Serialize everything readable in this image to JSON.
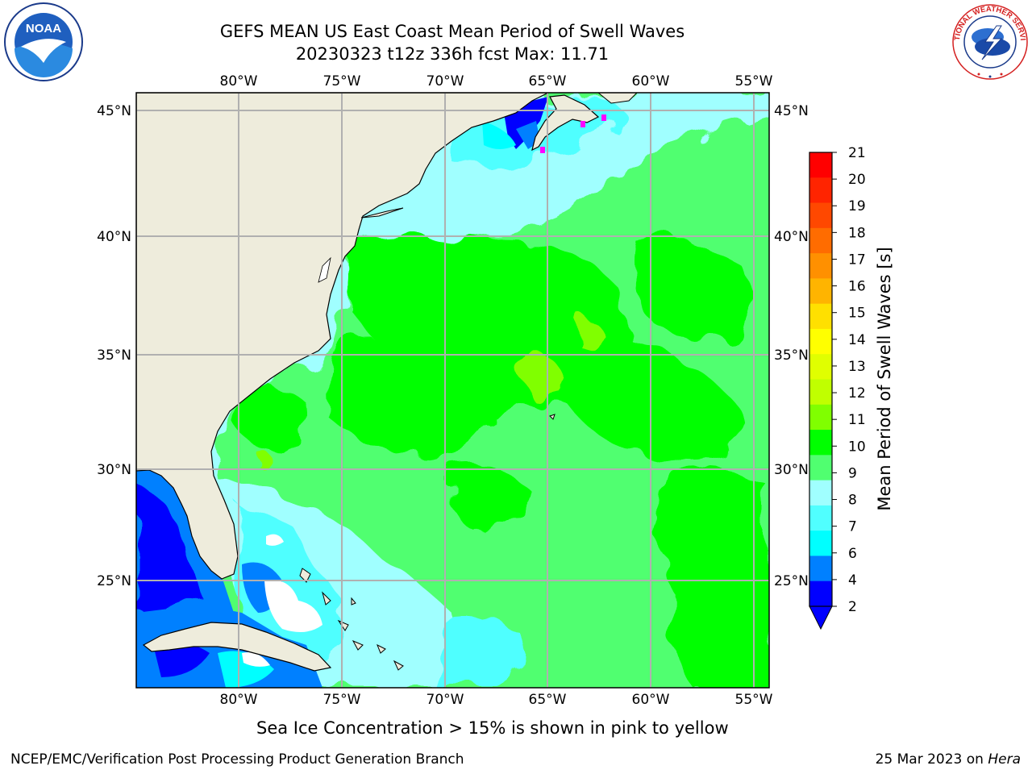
{
  "title": {
    "line1": "GEFS MEAN US East Coast Mean Period of Swell Waves",
    "line2": "20230323 t12z 336h fcst   Max: 11.71"
  },
  "map": {
    "lon_labels": [
      "80°W",
      "75°W",
      "70°W",
      "65°W",
      "60°W",
      "55°W"
    ],
    "lat_labels": [
      "45°N",
      "40°N",
      "35°N",
      "30°N",
      "25°N"
    ],
    "colors": {
      "land": "#eeecdc",
      "grid": "#b0b0b0",
      "ocean_main": "#00ff00",
      "ice": "#ff00ff"
    }
  },
  "colorbar": {
    "label": "Mean Period of Swell Waves [s]",
    "ticks": [
      "21",
      "20",
      "19",
      "18",
      "17",
      "16",
      "15",
      "14",
      "13",
      "12",
      "11",
      "10",
      "9",
      "8",
      "7",
      "6",
      "4",
      "2"
    ],
    "colors": [
      "#ff0000",
      "#ff2400",
      "#ff4800",
      "#ff6c00",
      "#ff9000",
      "#ffb400",
      "#ffe000",
      "#ffff00",
      "#e0ff00",
      "#c0ff00",
      "#80ff00",
      "#00ff00",
      "#50ff70",
      "#a0ffff",
      "#50ffff",
      "#00ffff",
      "#0080ff",
      "#0000ff"
    ]
  },
  "footer": {
    "subtitle": "Sea Ice Concentration > 15% is shown in pink to yellow",
    "credit": "NCEP/EMC/Verification Post Processing Product Generation Branch",
    "date": "25 Mar 2023 on ",
    "machine": "Hera"
  },
  "logos": {
    "noaa": "NOAA",
    "nws": "NATIONAL WEATHER SERVICE"
  }
}
